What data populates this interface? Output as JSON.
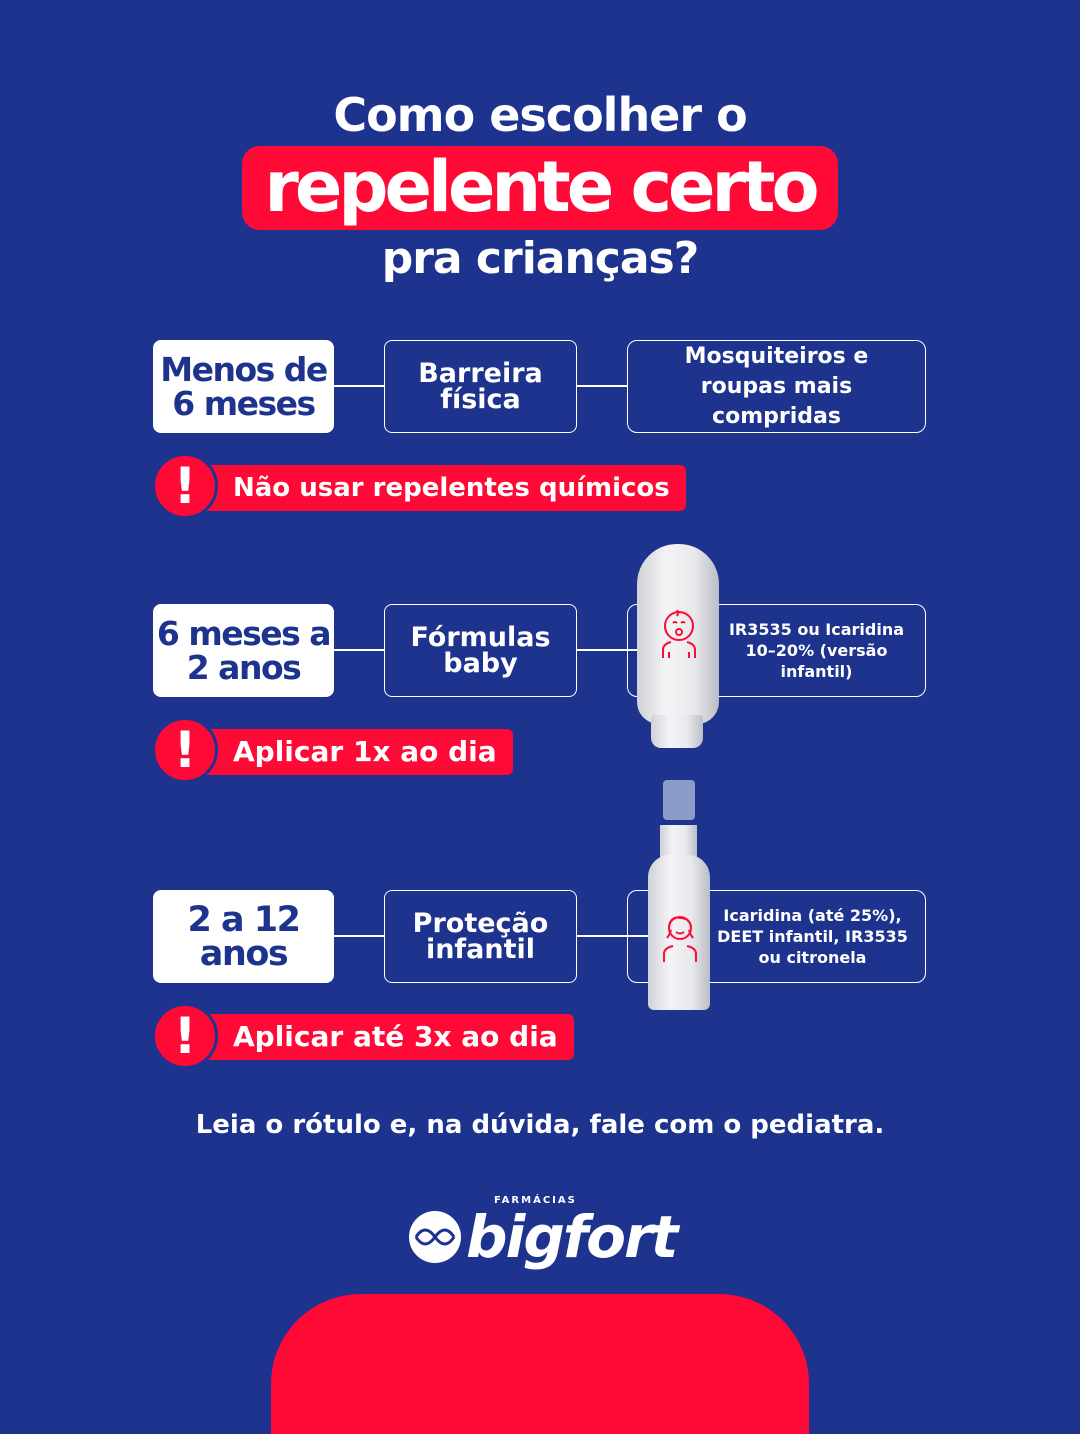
{
  "title": {
    "line1": "Como escolher o",
    "highlight": "repelente certo",
    "line3": "pra crianças?"
  },
  "rows": [
    {
      "age": "Menos de 6 meses",
      "type": "Barreira física",
      "detail": "Mosquiteiros e roupas mais compridas",
      "alert": "Não usar repelentes químicos"
    },
    {
      "age": "6 meses a 2 anos",
      "type": "Fórmulas baby",
      "detail": "IR3535 ou Icaridina 10–20% (versão infantil)",
      "alert": "Aplicar 1x ao dia",
      "icon": "baby-icon"
    },
    {
      "age": "2 a 12 anos",
      "type": "Proteção infantil",
      "detail": "Icaridina (até 25%), DEET infantil, IR3535 ou citronela",
      "alert": "Aplicar até 3x ao dia",
      "icon": "child-icon"
    }
  ],
  "footer": "Leia o rótulo e, na dúvida, fale com o pediatra.",
  "logo": {
    "small": "FARMÁCIAS",
    "name": "bigfort"
  },
  "colors": {
    "background": "#1d338e",
    "accent": "#ff0a36"
  }
}
